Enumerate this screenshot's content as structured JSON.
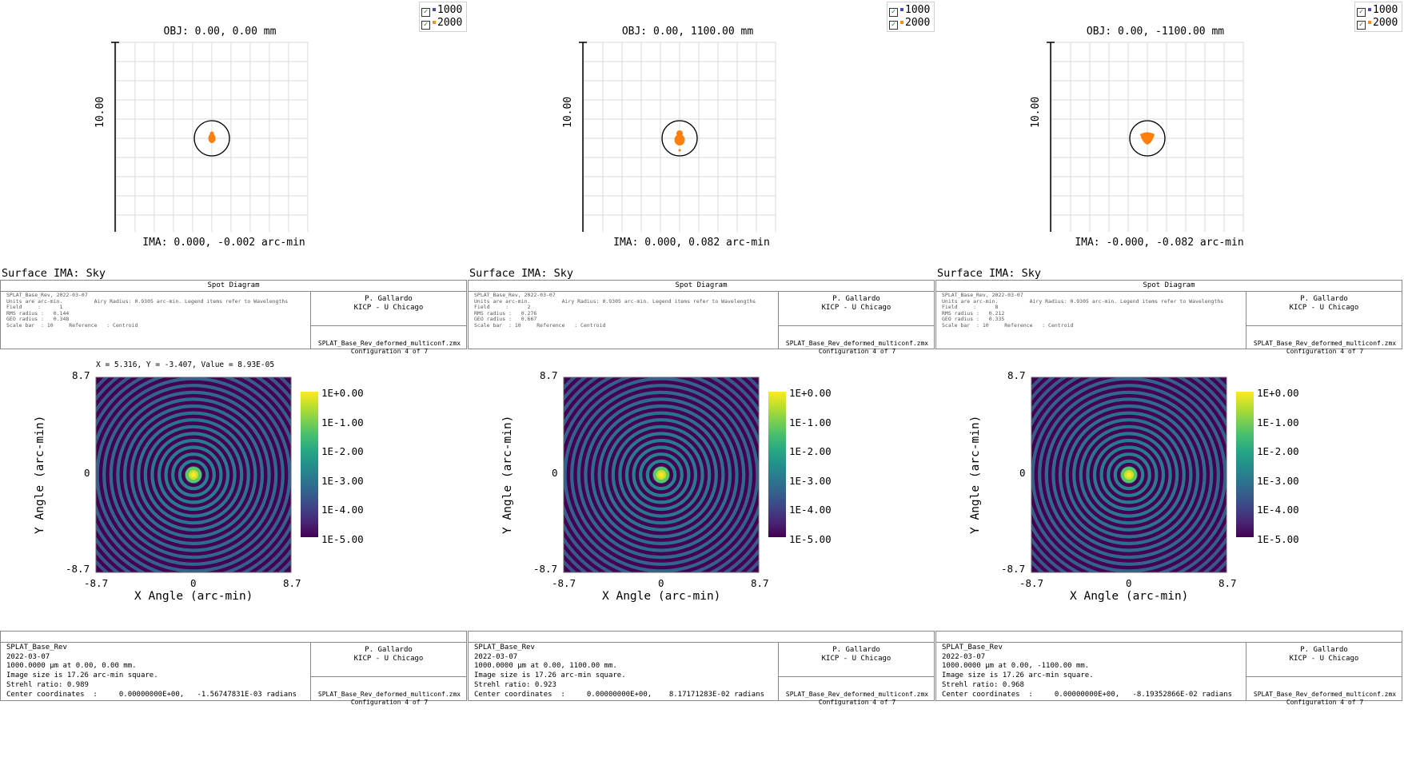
{
  "legend": {
    "items": [
      {
        "label": "1000",
        "color": "#4a4ab0",
        "checked": true
      },
      {
        "label": "2000",
        "color": "#ff8c1a",
        "checked": true
      }
    ]
  },
  "colors": {
    "spot_marker": "#ff7f0e",
    "grid": "#d8d8d8",
    "psf_low": "#440154",
    "psf_high": "#fde725"
  },
  "panels": [
    {
      "spot": {
        "obj_label": "OBJ: 0.00, 0.00 mm",
        "scale_label": "10.00",
        "ima_label": "IMA: 0.000, -0.002 arc-min",
        "shape": "narrow"
      },
      "surface_label": "Surface IMA: Sky",
      "spot_box": {
        "header": "Spot Diagram",
        "lines": [
          "SPLAT_Base_Rev, 2022-03-07",
          "Units are arc-min.          Airy Radius: 0.9305 arc-min. Legend items refer to Wavelengths",
          "Field     :      1",
          "RMS radius :   0.144",
          "GEO radius :   0.348",
          "Scale bar  : 10     Reference   : Centroid"
        ],
        "author": "P. Gallardo",
        "affiliation": "KICP - U Chicago",
        "file": "SPLAT_Base_Rev_deformed_multiconf.zmx",
        "config": "Configuration 4 of 7"
      },
      "readout": "X = 5.316, Y = -3.407, Value = 8.93E-05",
      "psf": {
        "ylabel": "Y Angle (arc-min)",
        "xlabel": "X Angle (arc-min)",
        "ytick_top": "8.7",
        "ytick_mid": "0",
        "ytick_bot": "-8.7",
        "xtick_left": "-8.7",
        "xtick_mid": "0",
        "xtick_right": "8.7",
        "colorbar": [
          "1E+0.00",
          "1E-1.00",
          "1E-2.00",
          "1E-3.00",
          "1E-4.00",
          "1E-5.00"
        ]
      },
      "psf_box": {
        "lines": [
          "SPLAT_Base_Rev",
          "2022-03-07",
          "1000.0000 µm at 0.00, 0.00 mm.",
          "Image size is 17.26 arc-min square.",
          "Strehl ratio: 0.989",
          "Center coordinates  :     0.00000000E+00,   -1.56747831E-03 radians"
        ],
        "author": "P. Gallardo",
        "affiliation": "KICP - U Chicago",
        "file": "SPLAT_Base_Rev_deformed_multiconf.zmx",
        "config": "Configuration 4 of 7"
      }
    },
    {
      "spot": {
        "obj_label": "OBJ: 0.00, 1100.00 mm",
        "scale_label": "10.00",
        "ima_label": "IMA: 0.000, 0.082 arc-min",
        "shape": "teardrop"
      },
      "surface_label": "Surface IMA: Sky",
      "spot_box": {
        "header": "Spot Diagram",
        "lines": [
          "SPLAT_Base_Rev, 2022-03-07",
          "Units are arc-min.          Airy Radius: 0.9305 arc-min. Legend items refer to Wavelengths",
          "Field     :      2",
          "RMS radius :   0.276",
          "GEO radius :   0.667",
          "Scale bar  : 10     Reference   : Centroid"
        ],
        "author": "P. Gallardo",
        "affiliation": "KICP - U Chicago",
        "file": "SPLAT_Base_Rev_deformed_multiconf.zmx",
        "config": "Configuration 4 of 7"
      },
      "readout": "",
      "psf": {
        "ylabel": "Y Angle (arc-min)",
        "xlabel": "X Angle (arc-min)",
        "ytick_top": "8.7",
        "ytick_mid": "0",
        "ytick_bot": "-8.7",
        "xtick_left": "-8.7",
        "xtick_mid": "0",
        "xtick_right": "8.7",
        "colorbar": [
          "1E+0.00",
          "1E-1.00",
          "1E-2.00",
          "1E-3.00",
          "1E-4.00",
          "1E-5.00"
        ]
      },
      "psf_box": {
        "lines": [
          "SPLAT_Base_Rev",
          "2022-03-07",
          "1000.0000 µm at 0.00, 1100.00 mm.",
          "Image size is 17.26 arc-min square.",
          "Strehl ratio: 0.923",
          "Center coordinates  :     0.00000000E+00,    8.17171283E-02 radians"
        ],
        "author": "P. Gallardo",
        "affiliation": "KICP - U Chicago",
        "file": "SPLAT_Base_Rev_deformed_multiconf.zmx",
        "config": "Configuration 4 of 7"
      }
    },
    {
      "spot": {
        "obj_label": "OBJ: 0.00, -1100.00 mm",
        "scale_label": "10.00",
        "ima_label": "IMA: -0.000, -0.082 arc-min",
        "shape": "blob"
      },
      "surface_label": "Surface IMA: Sky",
      "spot_box": {
        "header": "Spot Diagram",
        "lines": [
          "SPLAT_Base_Rev, 2022-03-07",
          "Units are arc-min.          Airy Radius: 0.9305 arc-min. Legend items refer to Wavelengths",
          "Field     :      8",
          "RMS radius :   0.212",
          "GEO radius :   0.335",
          "Scale bar  : 10     Reference   : Centroid"
        ],
        "author": "P. Gallardo",
        "affiliation": "KICP - U Chicago",
        "file": "SPLAT_Base_Rev_deformed_multiconf.zmx",
        "config": "Configuration 4 of 7"
      },
      "readout": "",
      "psf": {
        "ylabel": "Y Angle (arc-min)",
        "xlabel": "X Angle (arc-min)",
        "ytick_top": "8.7",
        "ytick_mid": "0",
        "ytick_bot": "-8.7",
        "xtick_left": "-8.7",
        "xtick_mid": "0",
        "xtick_right": "8.7",
        "colorbar": [
          "1E+0.00",
          "1E-1.00",
          "1E-2.00",
          "1E-3.00",
          "1E-4.00",
          "1E-5.00"
        ]
      },
      "psf_box": {
        "lines": [
          "SPLAT_Base_Rev",
          "2022-03-07",
          "1000.0000 µm at 0.00, -1100.00 mm.",
          "Image size is 17.26 arc-min square.",
          "Strehl ratio: 0.968",
          "Center coordinates  :     0.00000000E+00,   -8.19352866E-02 radians"
        ],
        "author": "P. Gallardo",
        "affiliation": "KICP - U Chicago",
        "file": "SPLAT_Base_Rev_deformed_multiconf.zmx",
        "config": "Configuration 4 of 7"
      }
    }
  ]
}
